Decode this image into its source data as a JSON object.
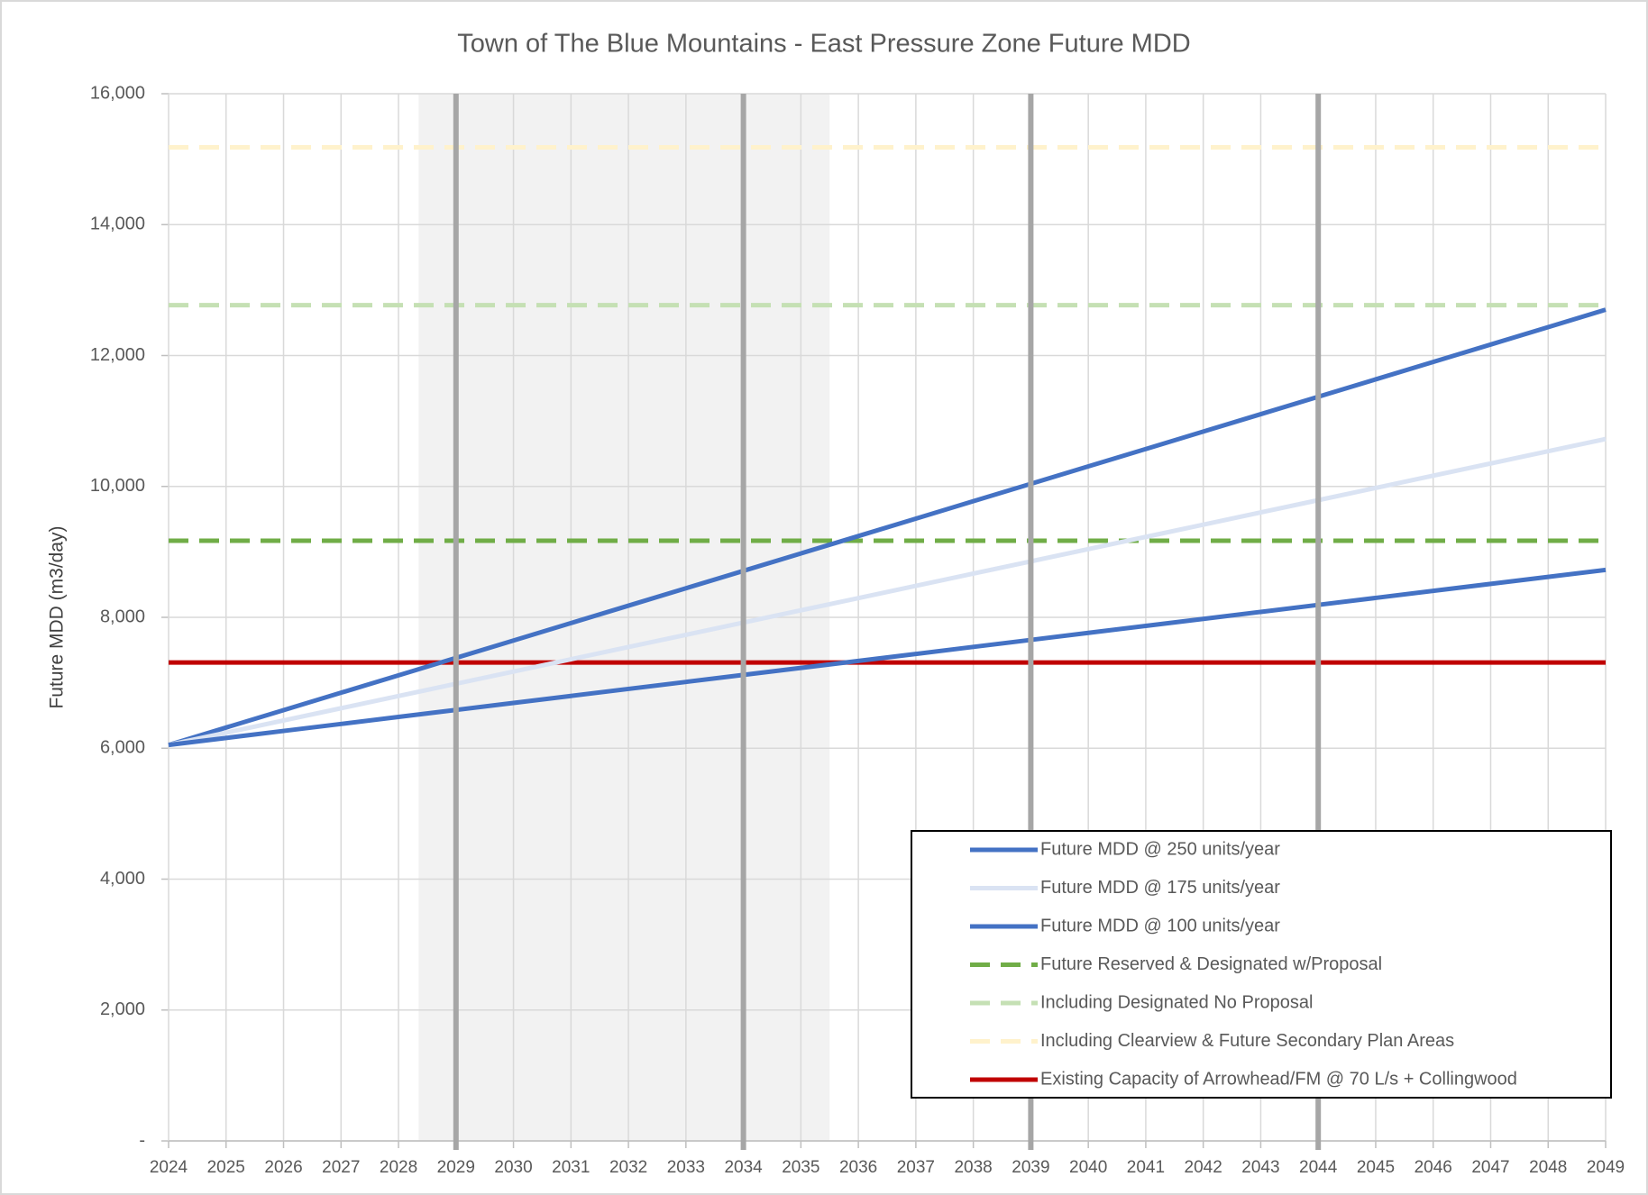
{
  "chart_data": {
    "type": "line",
    "title": "Town of The Blue Mountains - East Pressure Zone Future MDD",
    "y_label": "Future MDD (m3/day)",
    "x": [
      2024,
      2025,
      2026,
      2027,
      2028,
      2029,
      2030,
      2031,
      2032,
      2033,
      2034,
      2035,
      2036,
      2037,
      2038,
      2039,
      2040,
      2041,
      2042,
      2043,
      2044,
      2045,
      2046,
      2047,
      2048,
      2049
    ],
    "xlim": [
      2024,
      2049
    ],
    "xticks": [
      2024,
      2025,
      2026,
      2027,
      2028,
      2029,
      2030,
      2031,
      2032,
      2033,
      2034,
      2035,
      2036,
      2037,
      2038,
      2039,
      2040,
      2041,
      2042,
      2043,
      2044,
      2045,
      2046,
      2047,
      2048,
      2049
    ],
    "ylim": [
      0,
      16000
    ],
    "yticks": [
      {
        "value": 0,
        "label": "-"
      },
      {
        "value": 2000,
        "label": "2,000"
      },
      {
        "value": 4000,
        "label": "4,000"
      },
      {
        "value": 6000,
        "label": "6,000"
      },
      {
        "value": 8000,
        "label": "8,000"
      },
      {
        "value": 10000,
        "label": "10,000"
      },
      {
        "value": 12000,
        "label": "12,000"
      },
      {
        "value": 14000,
        "label": "14,000"
      },
      {
        "value": 16000,
        "label": "16,000"
      }
    ],
    "grid": true,
    "shaded_region": [
      2028.35,
      2035.5
    ],
    "shade_color": "#f2f2f2",
    "vlines": [
      2029,
      2034,
      2039,
      2044
    ],
    "vline_color": "#a6a6a6",
    "series": [
      {
        "name": "Future MDD @ 250 units/year",
        "color": "#4472c4",
        "values": [
          6050,
          6316,
          6582,
          6848,
          7114,
          7380,
          7646,
          7912,
          8178,
          8444,
          8710,
          8976,
          9242,
          9508,
          9774,
          10040,
          10306,
          10572,
          10838,
          11104,
          11370,
          11636,
          11902,
          12168,
          12434,
          12700
        ]
      },
      {
        "name": "Future MDD @ 175 units/year",
        "color": "#dae3f3",
        "values": [
          6050,
          6237,
          6424,
          6611,
          6798,
          6985,
          7172,
          7359,
          7546,
          7733,
          7920,
          8107,
          8294,
          8481,
          8668,
          8855,
          9042,
          9229,
          9416,
          9603,
          9790,
          9977,
          10164,
          10351,
          10538,
          10725
        ]
      },
      {
        "name": "Future MDD @ 100 units/year",
        "color": "#4472c4",
        "values": [
          6050,
          6157,
          6264,
          6371,
          6478,
          6585,
          6692,
          6799,
          6906,
          7013,
          7120,
          7227,
          7334,
          7441,
          7548,
          7655,
          7762,
          7869,
          7976,
          8083,
          8190,
          8297,
          8404,
          8511,
          8618,
          8725
        ]
      },
      {
        "name": "Future Reserved & Designated w/Proposal",
        "color": "#70ad47",
        "dashed": true,
        "value": 9170
      },
      {
        "name": "Including Designated No Proposal",
        "color": "#c5e0b4",
        "dashed": true,
        "value": 12770
      },
      {
        "name": "Including Clearview & Future Secondary Plan Areas",
        "color": "#fff2cc",
        "dashed": true,
        "value": 15180
      },
      {
        "name": "Existing Capacity of Arrowhead/FM @ 70 L/s + Collingwood",
        "color": "#c00000",
        "value": 7310
      }
    ]
  }
}
